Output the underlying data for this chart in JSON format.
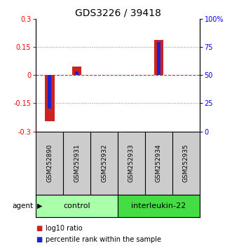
{
  "title": "GDS3226 / 39418",
  "samples": [
    "GSM252890",
    "GSM252931",
    "GSM252932",
    "GSM252933",
    "GSM252934",
    "GSM252935"
  ],
  "log10_ratio": [
    -0.245,
    0.045,
    0.0,
    0.0,
    0.185,
    0.0
  ],
  "percentile_rank_raw": [
    20,
    53,
    50,
    50,
    79,
    50
  ],
  "ylim_left": [
    -0.3,
    0.3
  ],
  "ylim_right": [
    0,
    100
  ],
  "yticks_left": [
    -0.3,
    -0.15,
    0.0,
    0.15,
    0.3
  ],
  "ytick_labels_left": [
    "-0.3",
    "-0.15",
    "0",
    "0.15",
    "0.3"
  ],
  "yticks_right": [
    0,
    25,
    50,
    75,
    100
  ],
  "ytick_labels_right": [
    "0",
    "25",
    "50",
    "75",
    "100%"
  ],
  "bar_color_red": "#cc2222",
  "bar_color_blue": "#2222cc",
  "bar_width": 0.35,
  "blue_bar_width": 0.12,
  "groups": [
    {
      "label": "control",
      "indices": [
        0,
        1,
        2
      ],
      "color": "#aaffaa"
    },
    {
      "label": "interleukin-22",
      "indices": [
        3,
        4,
        5
      ],
      "color": "#44dd44"
    }
  ],
  "sample_row_color": "#cccccc",
  "zero_line_color": "#dd2222",
  "dotted_line_color": "#888888",
  "background_color": "#ffffff",
  "title_fontsize": 10,
  "tick_fontsize": 7,
  "sample_fontsize": 6.5,
  "group_fontsize": 8,
  "legend_fontsize": 7,
  "agent_label": "agent",
  "legend_red_label": "log10 ratio",
  "legend_blue_label": "percentile rank within the sample"
}
